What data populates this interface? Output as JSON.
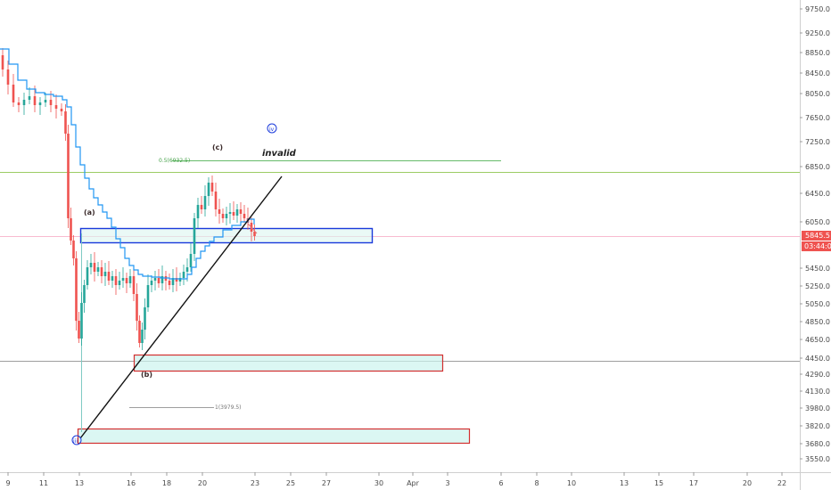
{
  "chart_data": {
    "type": "candlestick",
    "y_ticks": [
      "9750.0",
      "9250.0",
      "8850.0",
      "8450.0",
      "8050.0",
      "7650.0",
      "7250.0",
      "6850.0",
      "6450.0",
      "6050.0",
      "5450.0",
      "5250.0",
      "5050.0",
      "4850.0",
      "4650.0",
      "4450.0",
      "4290.0",
      "4130.0",
      "3980.0",
      "3820.0",
      "3680.0",
      "3550.0"
    ],
    "x_ticks": [
      "9",
      "11",
      "13",
      "16",
      "18",
      "20",
      "23",
      "25",
      "27",
      "30",
      "Apr",
      "3",
      "6",
      "8",
      "10",
      "13",
      "15",
      "17",
      "20",
      "22"
    ],
    "price_label": "5845.5",
    "countdown_label": "03:44:06",
    "colors": {
      "up": "#26a69a",
      "down": "#ef5350",
      "ma": "#2196f3",
      "box_blue": "#1a3adb",
      "box_red": "#d32f2f",
      "fib": "#66bb6a"
    },
    "annotations": {
      "wave_a": "(a)",
      "wave_b": "(b)",
      "wave_c": "(c)",
      "wave_iii": "iii",
      "wave_iv": "iv",
      "invalid": "invalid",
      "fib_05": "0.5(6932.5)",
      "fib_1": "1(3979.5)"
    }
  }
}
